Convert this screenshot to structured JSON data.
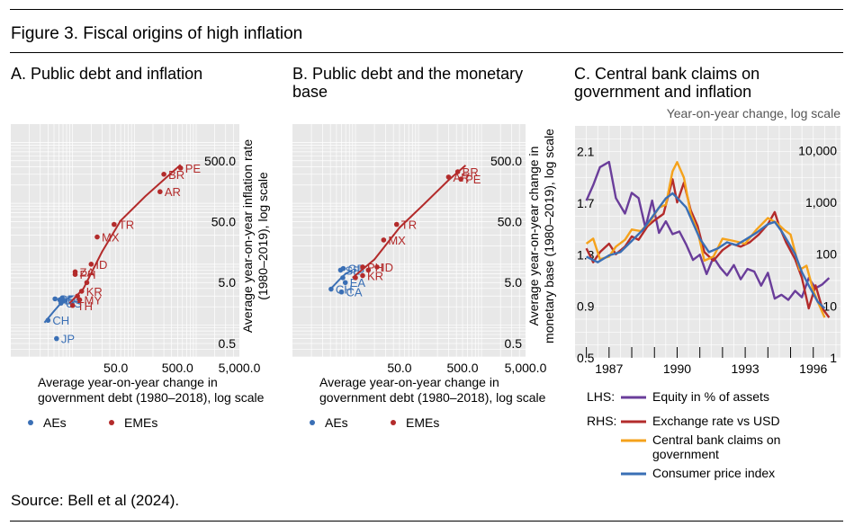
{
  "figure_title": "Figure 3. Fiscal origins of high inflation",
  "source": "Source: Bell et al (2024).",
  "colors": {
    "AEs": "#3a6fb5",
    "EMEs": "#b32b2b",
    "purple": "#6a3d9a",
    "orange": "#f5a21b",
    "grid_bg": "#e8e8e8"
  },
  "chart_data": [
    {
      "type": "scatter",
      "title": "A. Public debt and inflation",
      "xlabel": "Average year-on-year change in government debt (1980–2018), log scale",
      "ylabel": "Average year-on-year inflation rate (1980–2019), log scale",
      "x_scale": "log",
      "y_scale": "log",
      "xlim": [
        1,
        5000
      ],
      "ylim": [
        0.3,
        2000
      ],
      "x_ticks": [
        {
          "v": 50,
          "label": "50.0"
        },
        {
          "v": 500,
          "label": "500.0"
        },
        {
          "v": 5000,
          "label": "5,000.0"
        }
      ],
      "y_ticks": [
        {
          "v": 0.5,
          "label": "0.5"
        },
        {
          "v": 5,
          "label": "5.0"
        },
        {
          "v": 50,
          "label": "50.0"
        },
        {
          "v": 500,
          "label": "500.0"
        }
      ],
      "legend": [
        {
          "name": "AEs"
        },
        {
          "name": "EMEs"
        }
      ],
      "series": [
        {
          "name": "AEs",
          "points": [
            {
              "label": "SE",
              "x": 5.2,
              "y": 2.7
            },
            {
              "label": "EA",
              "x": 6.2,
              "y": 2.6
            },
            {
              "label": "US",
              "x": 6.5,
              "y": 2.3
            },
            {
              "label": "CH",
              "x": 4.0,
              "y": 1.2
            },
            {
              "label": "JP",
              "x": 5.5,
              "y": 0.6
            },
            {
              "label": "",
              "x": 6.8,
              "y": 2.8
            },
            {
              "label": "",
              "x": 7.2,
              "y": 2.5
            }
          ],
          "fit": [
            [
              3.5,
              1.1
            ],
            [
              5,
              1.7
            ],
            [
              7,
              2.5
            ],
            [
              10,
              3.0
            ]
          ]
        },
        {
          "name": "EMEs",
          "points": [
            {
              "label": "PE",
              "x": 560,
              "y": 380
            },
            {
              "label": "BR",
              "x": 300,
              "y": 300
            },
            {
              "label": "AR",
              "x": 260,
              "y": 155
            },
            {
              "label": "MX",
              "x": 25,
              "y": 28
            },
            {
              "label": "TR",
              "x": 47,
              "y": 45
            },
            {
              "label": "ZA",
              "x": 11,
              "y": 7.5
            },
            {
              "label": "ID",
              "x": 20,
              "y": 10
            },
            {
              "label": "PH",
              "x": 11,
              "y": 6.8
            },
            {
              "label": "KR",
              "x": 14,
              "y": 3.6
            },
            {
              "label": "MY",
              "x": 13,
              "y": 2.6
            },
            {
              "label": "TH",
              "x": 10,
              "y": 2.1
            },
            {
              "label": "",
              "x": 12,
              "y": 3.0
            },
            {
              "label": "",
              "x": 17,
              "y": 5.0
            }
          ],
          "fit": [
            [
              9,
              2.3
            ],
            [
              15,
              4
            ],
            [
              30,
              16
            ],
            [
              60,
              52
            ],
            [
              150,
              130
            ],
            [
              350,
              280
            ],
            [
              560,
              430
            ]
          ]
        }
      ]
    },
    {
      "type": "scatter",
      "title": "B. Public debt and the monetary base",
      "xlabel": "Average year-on-year change in government debt (1980–2018), log scale",
      "ylabel": "Average year-on-year change in monetary base (1980–2019), log scale",
      "x_scale": "log",
      "y_scale": "log",
      "xlim": [
        1,
        5000
      ],
      "ylim": [
        0.3,
        2000
      ],
      "x_ticks": [
        {
          "v": 50,
          "label": "50.0"
        },
        {
          "v": 500,
          "label": "500.0"
        },
        {
          "v": 5000,
          "label": "5,000.0"
        }
      ],
      "y_ticks": [
        {
          "v": 0.5,
          "label": "0.5"
        },
        {
          "v": 5,
          "label": "5.0"
        },
        {
          "v": 50,
          "label": "50.0"
        },
        {
          "v": 500,
          "label": "500.0"
        }
      ],
      "legend": [
        {
          "name": "AEs"
        },
        {
          "name": "EMEs"
        }
      ],
      "series": [
        {
          "name": "AEs",
          "points": [
            {
              "label": "SE",
              "x": 5.8,
              "y": 8.0
            },
            {
              "label": "GB",
              "x": 6.4,
              "y": 8.5
            },
            {
              "label": "EA",
              "x": 6.9,
              "y": 5.0
            },
            {
              "label": "CH",
              "x": 4.1,
              "y": 3.9
            },
            {
              "label": "CA",
              "x": 6.0,
              "y": 3.5
            },
            {
              "label": "",
              "x": 6.3,
              "y": 6.0
            }
          ],
          "fit": [
            [
              4,
              3.9
            ],
            [
              5.5,
              5.5
            ],
            [
              7,
              7.0
            ],
            [
              9,
              8.0
            ]
          ]
        },
        {
          "name": "EMEs",
          "points": [
            {
              "label": "BR",
              "x": 420,
              "y": 330
            },
            {
              "label": "AR",
              "x": 300,
              "y": 270
            },
            {
              "label": "PE",
              "x": 470,
              "y": 250
            },
            {
              "label": "TR",
              "x": 45,
              "y": 45
            },
            {
              "label": "MX",
              "x": 28,
              "y": 25
            },
            {
              "label": "ID",
              "x": 22,
              "y": 9
            },
            {
              "label": "PH",
              "x": 13,
              "y": 9
            },
            {
              "label": "KR",
              "x": 13,
              "y": 6.5
            },
            {
              "label": "",
              "x": 10,
              "y": 6.0
            },
            {
              "label": "",
              "x": 16,
              "y": 8
            }
          ],
          "fit": [
            [
              9,
              6
            ],
            [
              20,
              12
            ],
            [
              50,
              40
            ],
            [
              120,
              95
            ],
            [
              300,
              240
            ],
            [
              560,
              420
            ]
          ]
        }
      ]
    },
    {
      "type": "line",
      "title": "C. Central bank claims on government and inflation",
      "subtitle": "Year-on-year change, log scale",
      "x_ticks": [
        "1987",
        "1990",
        "1993",
        "1996"
      ],
      "xlim": [
        1985.5,
        1997.2
      ],
      "y_left": {
        "ticks": [
          0.5,
          0.9,
          1.3,
          1.7,
          2.1
        ],
        "tick_labels": [
          "0.5",
          "0.9",
          "1.3",
          "1.7",
          "2.1"
        ],
        "range": [
          0.5,
          2.3
        ]
      },
      "y_right": {
        "scale": "log",
        "ticks": [
          1,
          10,
          100,
          1000,
          10000
        ],
        "tick_labels": [
          "1",
          "10",
          "100",
          "1,000",
          "10,000"
        ],
        "range": [
          1,
          30000
        ]
      },
      "legend_groups": [
        {
          "axis_label": "LHS:",
          "items": [
            "Equity in % of assets"
          ]
        },
        {
          "axis_label": "RHS:",
          "items": [
            "Exchange rate vs USD",
            "Central bank claims on government",
            "Consumer price index"
          ]
        }
      ],
      "series": [
        {
          "name": "Equity in % of assets",
          "axis": "left",
          "points": [
            [
              1986.0,
              1.72
            ],
            [
              1986.3,
              1.84
            ],
            [
              1986.6,
              1.98
            ],
            [
              1987.0,
              2.02
            ],
            [
              1987.3,
              1.74
            ],
            [
              1987.7,
              1.62
            ],
            [
              1988.0,
              1.78
            ],
            [
              1988.3,
              1.74
            ],
            [
              1988.6,
              1.51
            ],
            [
              1988.9,
              1.72
            ],
            [
              1989.2,
              1.47
            ],
            [
              1989.5,
              1.56
            ],
            [
              1989.8,
              1.46
            ],
            [
              1990.1,
              1.48
            ],
            [
              1990.4,
              1.38
            ],
            [
              1990.7,
              1.26
            ],
            [
              1991.0,
              1.3
            ],
            [
              1991.3,
              1.15
            ],
            [
              1991.6,
              1.28
            ],
            [
              1991.9,
              1.2
            ],
            [
              1992.2,
              1.14
            ],
            [
              1992.5,
              1.22
            ],
            [
              1992.8,
              1.11
            ],
            [
              1993.1,
              1.19
            ],
            [
              1993.4,
              1.17
            ],
            [
              1993.7,
              1.06
            ],
            [
              1994.0,
              1.16
            ],
            [
              1994.3,
              0.96
            ],
            [
              1994.6,
              0.99
            ],
            [
              1994.9,
              0.95
            ],
            [
              1995.2,
              1.02
            ],
            [
              1995.5,
              0.97
            ],
            [
              1995.8,
              1.12
            ],
            [
              1996.1,
              1.04
            ],
            [
              1996.4,
              1.07
            ],
            [
              1996.7,
              1.12
            ]
          ]
        },
        {
          "name": "Exchange rate vs USD",
          "axis": "right",
          "points": [
            [
              1986.0,
              130
            ],
            [
              1986.3,
              70
            ],
            [
              1986.6,
              110
            ],
            [
              1987.0,
              160
            ],
            [
              1987.3,
              100
            ],
            [
              1987.7,
              140
            ],
            [
              1988.0,
              220
            ],
            [
              1988.3,
              190
            ],
            [
              1988.7,
              350
            ],
            [
              1989.0,
              450
            ],
            [
              1989.4,
              600
            ],
            [
              1989.8,
              2800
            ],
            [
              1990.0,
              1000
            ],
            [
              1990.3,
              2400
            ],
            [
              1990.6,
              700
            ],
            [
              1990.9,
              350
            ],
            [
              1991.2,
              110
            ],
            [
              1991.6,
              75
            ],
            [
              1992.0,
              120
            ],
            [
              1992.4,
              160
            ],
            [
              1992.8,
              140
            ],
            [
              1993.2,
              170
            ],
            [
              1993.6,
              240
            ],
            [
              1994.0,
              380
            ],
            [
              1994.3,
              650
            ],
            [
              1994.5,
              350
            ],
            [
              1994.8,
              170
            ],
            [
              1995.2,
              80
            ],
            [
              1995.5,
              35
            ],
            [
              1995.8,
              9
            ],
            [
              1996.1,
              25
            ],
            [
              1996.4,
              9
            ],
            [
              1996.7,
              6
            ]
          ]
        },
        {
          "name": "Central bank claims on government",
          "axis": "right",
          "points": [
            [
              1986.0,
              160
            ],
            [
              1986.3,
              200
            ],
            [
              1986.6,
              80
            ],
            [
              1987.0,
              90
            ],
            [
              1987.3,
              140
            ],
            [
              1987.7,
              190
            ],
            [
              1988.0,
              300
            ],
            [
              1988.4,
              280
            ],
            [
              1988.8,
              420
            ],
            [
              1989.2,
              800
            ],
            [
              1989.5,
              900
            ],
            [
              1989.8,
              4000
            ],
            [
              1990.0,
              6000
            ],
            [
              1990.3,
              3000
            ],
            [
              1990.6,
              600
            ],
            [
              1990.9,
              280
            ],
            [
              1991.2,
              75
            ],
            [
              1991.6,
              90
            ],
            [
              1992.0,
              200
            ],
            [
              1992.5,
              180
            ],
            [
              1993.0,
              160
            ],
            [
              1993.5,
              300
            ],
            [
              1994.0,
              500
            ],
            [
              1994.4,
              400
            ],
            [
              1994.7,
              300
            ],
            [
              1995.0,
              240
            ],
            [
              1995.4,
              50
            ],
            [
              1995.7,
              60
            ],
            [
              1996.0,
              20
            ],
            [
              1996.2,
              12
            ],
            [
              1996.5,
              6
            ]
          ]
        },
        {
          "name": "Consumer price index",
          "axis": "right",
          "points": [
            [
              1986.0,
              90
            ],
            [
              1986.5,
              70
            ],
            [
              1987.0,
              95
            ],
            [
              1987.5,
              110
            ],
            [
              1988.0,
              180
            ],
            [
              1988.5,
              300
            ],
            [
              1989.0,
              600
            ],
            [
              1989.5,
              1200
            ],
            [
              1989.8,
              1500
            ],
            [
              1990.1,
              1100
            ],
            [
              1990.4,
              800
            ],
            [
              1990.7,
              400
            ],
            [
              1991.0,
              200
            ],
            [
              1991.4,
              110
            ],
            [
              1991.8,
              130
            ],
            [
              1992.2,
              170
            ],
            [
              1992.6,
              150
            ],
            [
              1993.0,
              190
            ],
            [
              1993.5,
              260
            ],
            [
              1994.0,
              380
            ],
            [
              1994.3,
              420
            ],
            [
              1994.6,
              280
            ],
            [
              1994.9,
              170
            ],
            [
              1995.2,
              100
            ],
            [
              1995.5,
              45
            ],
            [
              1995.8,
              25
            ],
            [
              1996.2,
              12
            ],
            [
              1996.5,
              9
            ]
          ]
        }
      ]
    }
  ]
}
